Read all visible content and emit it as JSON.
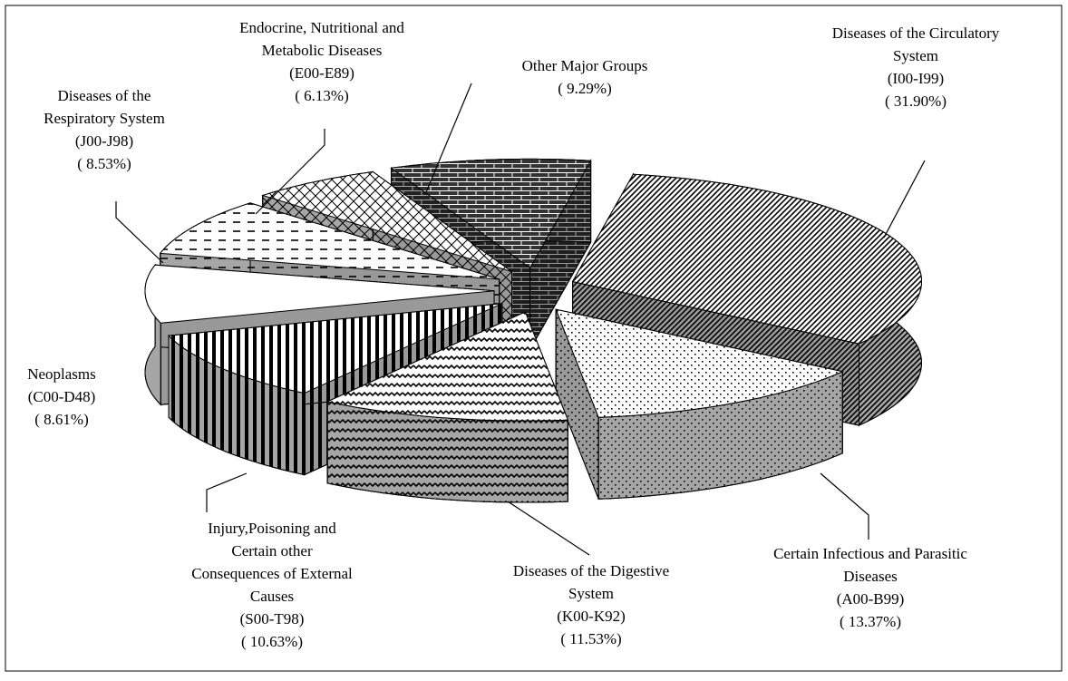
{
  "chart_data": {
    "type": "pie",
    "categories": [
      "Diseases of the Circulatory System",
      "Certain Infectious and Parasitic Diseases",
      "Diseases of the Digestive System",
      "Injury,Poisoning and Certain other Consequences of External Causes",
      "Neoplasms",
      "Diseases of the Respiratory System",
      "Endocrine, Nutritional and Metabolic Diseases",
      "Other Major Groups"
    ],
    "codes": [
      "(I00-I99)",
      "(A00-B99)",
      "(K00-K92)",
      "(S00-T98)",
      "(C00-D48)",
      "(J00-J98)",
      "(E00-E89)",
      null
    ],
    "values": [
      31.9,
      13.37,
      11.53,
      10.63,
      8.61,
      8.53,
      6.13,
      9.29
    ],
    "value_labels": [
      "( 31.90%)",
      "( 13.37%)",
      "( 11.53%)",
      "( 10.63%)",
      "( 8.61%)",
      "( 8.53%)",
      "( 6.13%)",
      "( 9.29%)"
    ]
  }
}
